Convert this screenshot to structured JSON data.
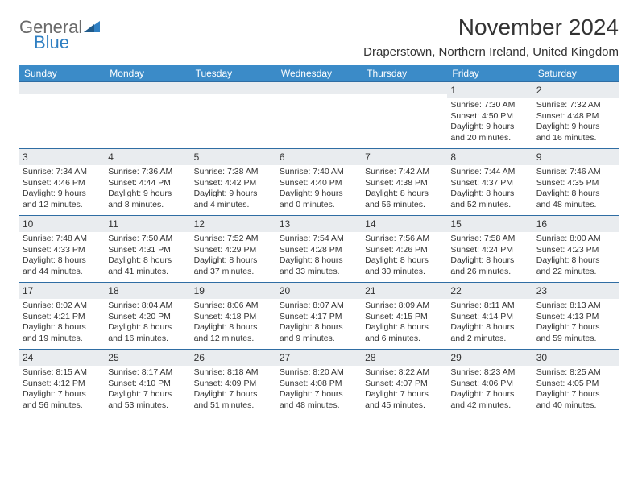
{
  "logo": {
    "word1": "General",
    "word2": "Blue",
    "tri_color": "#2f7fc2"
  },
  "title": "November 2024",
  "location": "Draperstown, Northern Ireland, United Kingdom",
  "colors": {
    "header_bg": "#3b8bc8",
    "header_text": "#ffffff",
    "daynum_bg": "#e9ecef",
    "week_border": "#2f6da3",
    "text": "#333333",
    "page_bg": "#ffffff"
  },
  "typography": {
    "body_pt": 10.5,
    "daynum_pt": 12,
    "dow_pt": 12,
    "title_pt": 28,
    "location_pt": 15
  },
  "days_of_week": [
    "Sunday",
    "Monday",
    "Tuesday",
    "Wednesday",
    "Thursday",
    "Friday",
    "Saturday"
  ],
  "weeks": [
    [
      {
        "n": "",
        "sunrise": "",
        "sunset": "",
        "daylight": ""
      },
      {
        "n": "",
        "sunrise": "",
        "sunset": "",
        "daylight": ""
      },
      {
        "n": "",
        "sunrise": "",
        "sunset": "",
        "daylight": ""
      },
      {
        "n": "",
        "sunrise": "",
        "sunset": "",
        "daylight": ""
      },
      {
        "n": "",
        "sunrise": "",
        "sunset": "",
        "daylight": ""
      },
      {
        "n": "1",
        "sunrise": "Sunrise: 7:30 AM",
        "sunset": "Sunset: 4:50 PM",
        "daylight": "Daylight: 9 hours and 20 minutes."
      },
      {
        "n": "2",
        "sunrise": "Sunrise: 7:32 AM",
        "sunset": "Sunset: 4:48 PM",
        "daylight": "Daylight: 9 hours and 16 minutes."
      }
    ],
    [
      {
        "n": "3",
        "sunrise": "Sunrise: 7:34 AM",
        "sunset": "Sunset: 4:46 PM",
        "daylight": "Daylight: 9 hours and 12 minutes."
      },
      {
        "n": "4",
        "sunrise": "Sunrise: 7:36 AM",
        "sunset": "Sunset: 4:44 PM",
        "daylight": "Daylight: 9 hours and 8 minutes."
      },
      {
        "n": "5",
        "sunrise": "Sunrise: 7:38 AM",
        "sunset": "Sunset: 4:42 PM",
        "daylight": "Daylight: 9 hours and 4 minutes."
      },
      {
        "n": "6",
        "sunrise": "Sunrise: 7:40 AM",
        "sunset": "Sunset: 4:40 PM",
        "daylight": "Daylight: 9 hours and 0 minutes."
      },
      {
        "n": "7",
        "sunrise": "Sunrise: 7:42 AM",
        "sunset": "Sunset: 4:38 PM",
        "daylight": "Daylight: 8 hours and 56 minutes."
      },
      {
        "n": "8",
        "sunrise": "Sunrise: 7:44 AM",
        "sunset": "Sunset: 4:37 PM",
        "daylight": "Daylight: 8 hours and 52 minutes."
      },
      {
        "n": "9",
        "sunrise": "Sunrise: 7:46 AM",
        "sunset": "Sunset: 4:35 PM",
        "daylight": "Daylight: 8 hours and 48 minutes."
      }
    ],
    [
      {
        "n": "10",
        "sunrise": "Sunrise: 7:48 AM",
        "sunset": "Sunset: 4:33 PM",
        "daylight": "Daylight: 8 hours and 44 minutes."
      },
      {
        "n": "11",
        "sunrise": "Sunrise: 7:50 AM",
        "sunset": "Sunset: 4:31 PM",
        "daylight": "Daylight: 8 hours and 41 minutes."
      },
      {
        "n": "12",
        "sunrise": "Sunrise: 7:52 AM",
        "sunset": "Sunset: 4:29 PM",
        "daylight": "Daylight: 8 hours and 37 minutes."
      },
      {
        "n": "13",
        "sunrise": "Sunrise: 7:54 AM",
        "sunset": "Sunset: 4:28 PM",
        "daylight": "Daylight: 8 hours and 33 minutes."
      },
      {
        "n": "14",
        "sunrise": "Sunrise: 7:56 AM",
        "sunset": "Sunset: 4:26 PM",
        "daylight": "Daylight: 8 hours and 30 minutes."
      },
      {
        "n": "15",
        "sunrise": "Sunrise: 7:58 AM",
        "sunset": "Sunset: 4:24 PM",
        "daylight": "Daylight: 8 hours and 26 minutes."
      },
      {
        "n": "16",
        "sunrise": "Sunrise: 8:00 AM",
        "sunset": "Sunset: 4:23 PM",
        "daylight": "Daylight: 8 hours and 22 minutes."
      }
    ],
    [
      {
        "n": "17",
        "sunrise": "Sunrise: 8:02 AM",
        "sunset": "Sunset: 4:21 PM",
        "daylight": "Daylight: 8 hours and 19 minutes."
      },
      {
        "n": "18",
        "sunrise": "Sunrise: 8:04 AM",
        "sunset": "Sunset: 4:20 PM",
        "daylight": "Daylight: 8 hours and 16 minutes."
      },
      {
        "n": "19",
        "sunrise": "Sunrise: 8:06 AM",
        "sunset": "Sunset: 4:18 PM",
        "daylight": "Daylight: 8 hours and 12 minutes."
      },
      {
        "n": "20",
        "sunrise": "Sunrise: 8:07 AM",
        "sunset": "Sunset: 4:17 PM",
        "daylight": "Daylight: 8 hours and 9 minutes."
      },
      {
        "n": "21",
        "sunrise": "Sunrise: 8:09 AM",
        "sunset": "Sunset: 4:15 PM",
        "daylight": "Daylight: 8 hours and 6 minutes."
      },
      {
        "n": "22",
        "sunrise": "Sunrise: 8:11 AM",
        "sunset": "Sunset: 4:14 PM",
        "daylight": "Daylight: 8 hours and 2 minutes."
      },
      {
        "n": "23",
        "sunrise": "Sunrise: 8:13 AM",
        "sunset": "Sunset: 4:13 PM",
        "daylight": "Daylight: 7 hours and 59 minutes."
      }
    ],
    [
      {
        "n": "24",
        "sunrise": "Sunrise: 8:15 AM",
        "sunset": "Sunset: 4:12 PM",
        "daylight": "Daylight: 7 hours and 56 minutes."
      },
      {
        "n": "25",
        "sunrise": "Sunrise: 8:17 AM",
        "sunset": "Sunset: 4:10 PM",
        "daylight": "Daylight: 7 hours and 53 minutes."
      },
      {
        "n": "26",
        "sunrise": "Sunrise: 8:18 AM",
        "sunset": "Sunset: 4:09 PM",
        "daylight": "Daylight: 7 hours and 51 minutes."
      },
      {
        "n": "27",
        "sunrise": "Sunrise: 8:20 AM",
        "sunset": "Sunset: 4:08 PM",
        "daylight": "Daylight: 7 hours and 48 minutes."
      },
      {
        "n": "28",
        "sunrise": "Sunrise: 8:22 AM",
        "sunset": "Sunset: 4:07 PM",
        "daylight": "Daylight: 7 hours and 45 minutes."
      },
      {
        "n": "29",
        "sunrise": "Sunrise: 8:23 AM",
        "sunset": "Sunset: 4:06 PM",
        "daylight": "Daylight: 7 hours and 42 minutes."
      },
      {
        "n": "30",
        "sunrise": "Sunrise: 8:25 AM",
        "sunset": "Sunset: 4:05 PM",
        "daylight": "Daylight: 7 hours and 40 minutes."
      }
    ]
  ]
}
